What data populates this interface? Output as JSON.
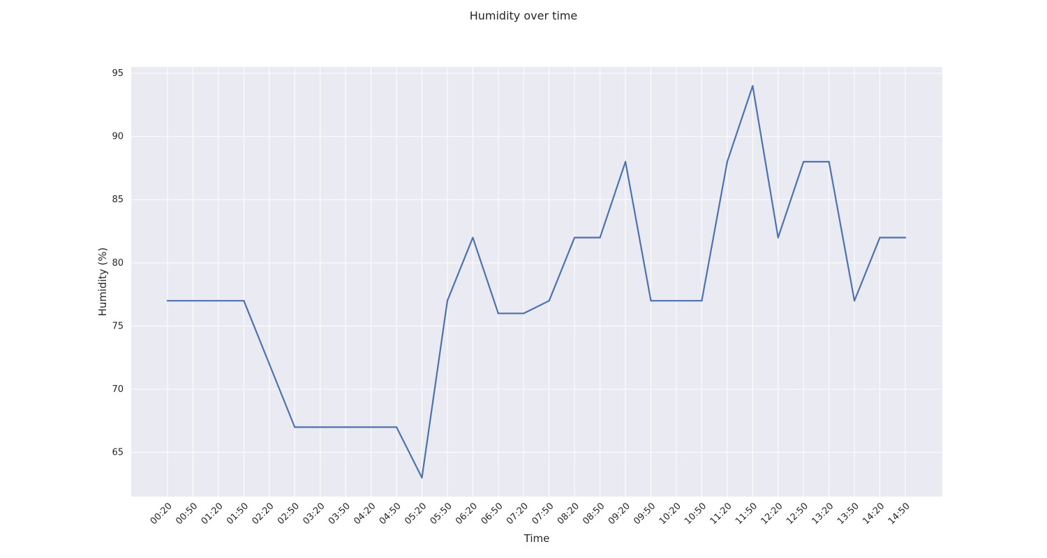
{
  "chart_data": {
    "type": "line",
    "title": "Humidity over time",
    "xlabel": "Time",
    "ylabel": "Humidity (%)",
    "ylim": [
      61.5,
      95.5
    ],
    "yticks": [
      65,
      70,
      75,
      80,
      85,
      90,
      95
    ],
    "grid": true,
    "line_color": "#4c72b0",
    "background_color": "#eaeaf2",
    "grid_color": "#ffffff",
    "x": [
      "00:20",
      "00:50",
      "01:20",
      "01:50",
      "02:20",
      "02:50",
      "03:20",
      "03:50",
      "04:20",
      "04:50",
      "05:20",
      "05:50",
      "06:20",
      "06:50",
      "07:20",
      "07:50",
      "08:20",
      "08:50",
      "09:20",
      "09:50",
      "10:20",
      "10:50",
      "11:20",
      "11:50",
      "12:20",
      "12:50",
      "13:20",
      "13:50",
      "14:20",
      "14:50"
    ],
    "series": [
      {
        "values": [
          77,
          77,
          77,
          77,
          72,
          67,
          67,
          67,
          67,
          67,
          63,
          77,
          82,
          76,
          76,
          77,
          82,
          82,
          88,
          77,
          77,
          77,
          88,
          94,
          82,
          88,
          88,
          77,
          82,
          82
        ]
      }
    ]
  }
}
